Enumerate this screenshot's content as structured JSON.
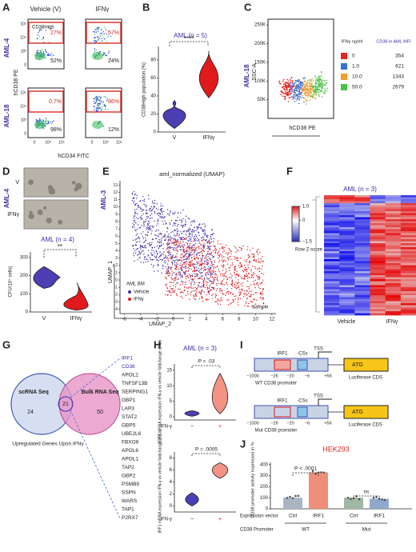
{
  "A": {
    "label": "A",
    "col1": "Vehicle (V)",
    "col2": "IFNγ",
    "row1": "AML-4",
    "row2": "AML-18",
    "gate": "CD38High",
    "q": [
      "27%",
      "52%",
      "57%",
      "24%",
      "0.7%",
      "98%",
      "86%",
      "12%"
    ],
    "ylabel": "hCD38 PE",
    "xlabel": "hCD34 FITC",
    "yticks": [
      "10⁵",
      "10⁴",
      "10³",
      "0"
    ],
    "xticks": [
      "0",
      "10³",
      "10⁵"
    ]
  },
  "B": {
    "label": "B",
    "title": "AML (n = 5)",
    "sig": "****",
    "ylabel": "CD38High population (%)",
    "categories": [
      "V",
      "IFNγ"
    ],
    "ylim": [
      0,
      95
    ],
    "yticks": [
      0,
      20,
      40,
      60,
      80
    ]
  },
  "C": {
    "label": "C",
    "side": "AML-18",
    "ylabel": "SSC-A",
    "xlabel": "hCD38 PE",
    "ylim": [
      0,
      265000
    ],
    "yticks": [
      {
        "value": 50000,
        "label": "50K"
      },
      {
        "value": 100000,
        "label": "100K"
      },
      {
        "value": 150000,
        "label": "150K"
      },
      {
        "value": 200000,
        "label": "200K"
      },
      {
        "value": 250000,
        "label": "250K"
      }
    ],
    "legend_head1": "IFNγ ng/ml",
    "legend_head2": "CD38 in AML MFI",
    "doses": [
      "0",
      "1.0",
      "10.0",
      "50.0"
    ],
    "mfi": [
      354,
      621,
      1343,
      2679
    ],
    "colors": [
      "#e8241f",
      "#3a6fd8",
      "#f39b2d",
      "#4cc24a"
    ]
  },
  "D": {
    "label": "D",
    "rows": [
      "V",
      "IFNγ"
    ],
    "side": "AML-4",
    "title": "AML (n = 4)",
    "sig": "**",
    "ylabel": "CFU/10⁴ cells)",
    "categories": [
      "V",
      "IFNγ"
    ],
    "ylim": [
      0,
      330
    ],
    "yticks": [
      0,
      100,
      200,
      300
    ]
  },
  "E": {
    "label": "E",
    "title": "aml_normalized (UMAP)",
    "side": "AML-3",
    "ylabel": "UMAP_1",
    "xlabel": "UMAP_2",
    "xlim": [
      -6.5,
      12.5
    ],
    "ylim": [
      -4.6,
      13.6
    ],
    "xticks": [
      -6,
      -4,
      -2,
      0,
      2,
      4,
      6,
      8,
      10,
      12
    ],
    "yticks": [
      -4,
      -3,
      -2,
      -1,
      0,
      1,
      2,
      3,
      4,
      5,
      6,
      7,
      8,
      9,
      10,
      11,
      12,
      13
    ],
    "legend_title": "AML BM",
    "legend": [
      "Vehicle",
      "IFNγ"
    ],
    "legend_colors": [
      "#3b2fa8",
      "#e0191c"
    ],
    "note": "Sample"
  },
  "F": {
    "label": "F",
    "title": "AML (n = 3)",
    "cbar_label": "Row Z-score",
    "cbar_lim": [
      -1.5,
      1.0
    ],
    "cbar_ticks": [
      {
        "value": 1,
        "label": "1.0"
      },
      0,
      {
        "value": -1.5,
        "label": "−1.5"
      }
    ],
    "groups": [
      "Vehicle",
      "IFNγ"
    ]
  },
  "G": {
    "label": "G",
    "left": "scRNA Seq",
    "right": "Bulk RNA Seq",
    "counts": [
      "24",
      "21",
      "50"
    ],
    "caption": "Upregulated Genes Upon IFNγ",
    "genes": [
      "IRF1",
      "CD38",
      "APOL2",
      "TNFSF13B",
      "SERPING1",
      "GBP1",
      "LAP3",
      "STAT2",
      "GBP5",
      "UBE2L6",
      "FBXO6",
      "APOL6",
      "APOL1",
      "TAP2",
      "GBP2",
      "PSMB9",
      "SSPN",
      "WARS",
      "TAP1",
      "P2RX7"
    ]
  },
  "H": {
    "label": "H",
    "title": "AML (n = 3)",
    "p_top": "P = .03",
    "p_bottom": "P = .0005",
    "ylabel_top": "CD38 mRNA expression IFN-γ vs vehicle foldchange (F.C.)",
    "ylabel_bottom": "IRF1 mRNA expression IFN-γ vs vehicle foldchange (F.C.)",
    "treatment": "IFN-γ",
    "levels": [
      "−",
      "+"
    ],
    "ylim_top": [
      -1,
      17
    ],
    "yticks_top": [
      0,
      5,
      10,
      15
    ],
    "ylim_bottom": [
      -1,
      9
    ],
    "yticks_bottom": [
      0,
      2,
      4,
      6,
      8
    ]
  },
  "I": {
    "label": "I",
    "irf1": "IRF1",
    "css": "-CSs",
    "tss": "TSS",
    "atg": "ATG",
    "positions": [
      "−1000",
      "−26",
      "−20",
      "−6",
      "+56"
    ],
    "cds": "Luciferase CDS",
    "wt": "WT CD38 promoter",
    "mut": "Mut CD38 promoter"
  },
  "J": {
    "label": "J",
    "title": "HEK293",
    "ylabel": "CD38 promoter activity expressed in %",
    "ylim": [
      0,
      420
    ],
    "yticks": [
      0,
      100,
      200,
      300,
      400
    ],
    "p": "P < .0001",
    "ns": "ns",
    "categories": [
      "Ctrl",
      "IRF1",
      "Ctrl",
      "IRF1"
    ],
    "values": [
      100,
      330,
      100,
      90
    ],
    "colors": [
      "#aab5c4",
      "#ef8f7b",
      "#9fb8a6",
      "#8fa9cb"
    ],
    "row1": "Expression vector",
    "row2": "CD38 Promoter",
    "groups": [
      "WT",
      "Mut"
    ]
  }
}
